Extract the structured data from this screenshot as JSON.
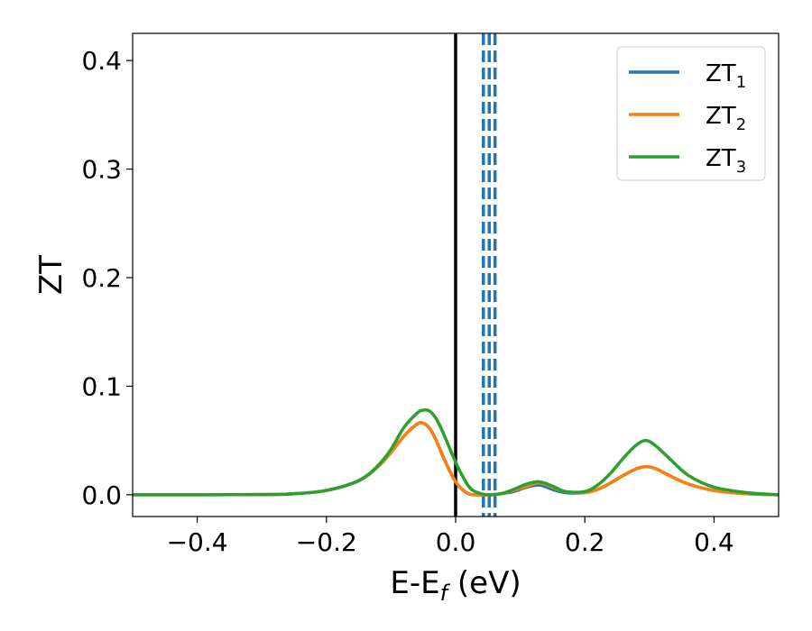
{
  "chart_data": {
    "type": "line",
    "xlabel": {
      "main": "E-E",
      "sub": "f",
      "unit": " (eV)"
    },
    "ylabel": "ZT",
    "xlim": [
      -0.5,
      0.5
    ],
    "ylim": [
      -0.02,
      0.425
    ],
    "xticks": [
      {
        "value": -0.4,
        "label": "−0.4"
      },
      {
        "value": -0.2,
        "label": "−0.2"
      },
      {
        "value": 0.0,
        "label": "0.0"
      },
      {
        "value": 0.2,
        "label": "0.2"
      },
      {
        "value": 0.4,
        "label": "0.4"
      }
    ],
    "yticks": [
      {
        "value": 0.0,
        "label": "0.0"
      },
      {
        "value": 0.1,
        "label": "0.1"
      },
      {
        "value": 0.2,
        "label": "0.2"
      },
      {
        "value": 0.3,
        "label": "0.3"
      },
      {
        "value": 0.4,
        "label": "0.4"
      }
    ],
    "grid": false,
    "legend_position": "top-right",
    "x": [
      -0.5,
      -0.3,
      -0.25,
      -0.2,
      -0.15,
      -0.12,
      -0.1,
      -0.08,
      -0.06,
      -0.05,
      -0.04,
      -0.03,
      -0.02,
      -0.01,
      0.0,
      0.01,
      0.02,
      0.03,
      0.05,
      0.07,
      0.09,
      0.11,
      0.13,
      0.15,
      0.17,
      0.2,
      0.22,
      0.24,
      0.26,
      0.28,
      0.295,
      0.31,
      0.33,
      0.36,
      0.4,
      0.45,
      0.5
    ],
    "series": [
      {
        "name": "ZT",
        "sub": "1",
        "color": "#1f77b4",
        "values": [
          0.0,
          0.0002,
          0.001,
          0.004,
          0.013,
          0.026,
          0.039,
          0.054,
          0.065,
          0.066,
          0.061,
          0.05,
          0.036,
          0.023,
          0.012,
          0.005,
          0.001,
          0.0,
          0.0,
          0.001,
          0.003,
          0.007,
          0.009,
          0.005,
          0.002,
          0.002,
          0.005,
          0.011,
          0.018,
          0.024,
          0.026,
          0.024,
          0.018,
          0.01,
          0.004,
          0.001,
          0.0
        ]
      },
      {
        "name": "ZT",
        "sub": "2",
        "color": "#ff7f0e",
        "values": [
          0.0,
          0.0002,
          0.001,
          0.004,
          0.013,
          0.026,
          0.039,
          0.054,
          0.065,
          0.066,
          0.061,
          0.05,
          0.036,
          0.023,
          0.012,
          0.005,
          0.001,
          0.0,
          0.0,
          0.001,
          0.004,
          0.008,
          0.011,
          0.007,
          0.003,
          0.002,
          0.005,
          0.011,
          0.018,
          0.024,
          0.026,
          0.024,
          0.018,
          0.01,
          0.004,
          0.001,
          0.0
        ]
      },
      {
        "name": "ZT",
        "sub": "3",
        "color": "#2ca02c",
        "values": [
          0.0,
          0.0002,
          0.001,
          0.004,
          0.013,
          0.027,
          0.042,
          0.062,
          0.075,
          0.078,
          0.077,
          0.07,
          0.058,
          0.044,
          0.03,
          0.018,
          0.008,
          0.003,
          0.0,
          0.001,
          0.005,
          0.01,
          0.012,
          0.008,
          0.003,
          0.003,
          0.009,
          0.02,
          0.034,
          0.046,
          0.05,
          0.045,
          0.034,
          0.018,
          0.007,
          0.002,
          0.0
        ]
      }
    ],
    "vlines": [
      {
        "x": 0.0,
        "color": "#000000",
        "style": "solid"
      },
      {
        "x": 0.043,
        "color": "#1f77b4",
        "style": "dashed"
      },
      {
        "x": 0.052,
        "color": "#1f77b4",
        "style": "dashed"
      },
      {
        "x": 0.061,
        "color": "#1f77b4",
        "style": "dashed"
      }
    ]
  }
}
